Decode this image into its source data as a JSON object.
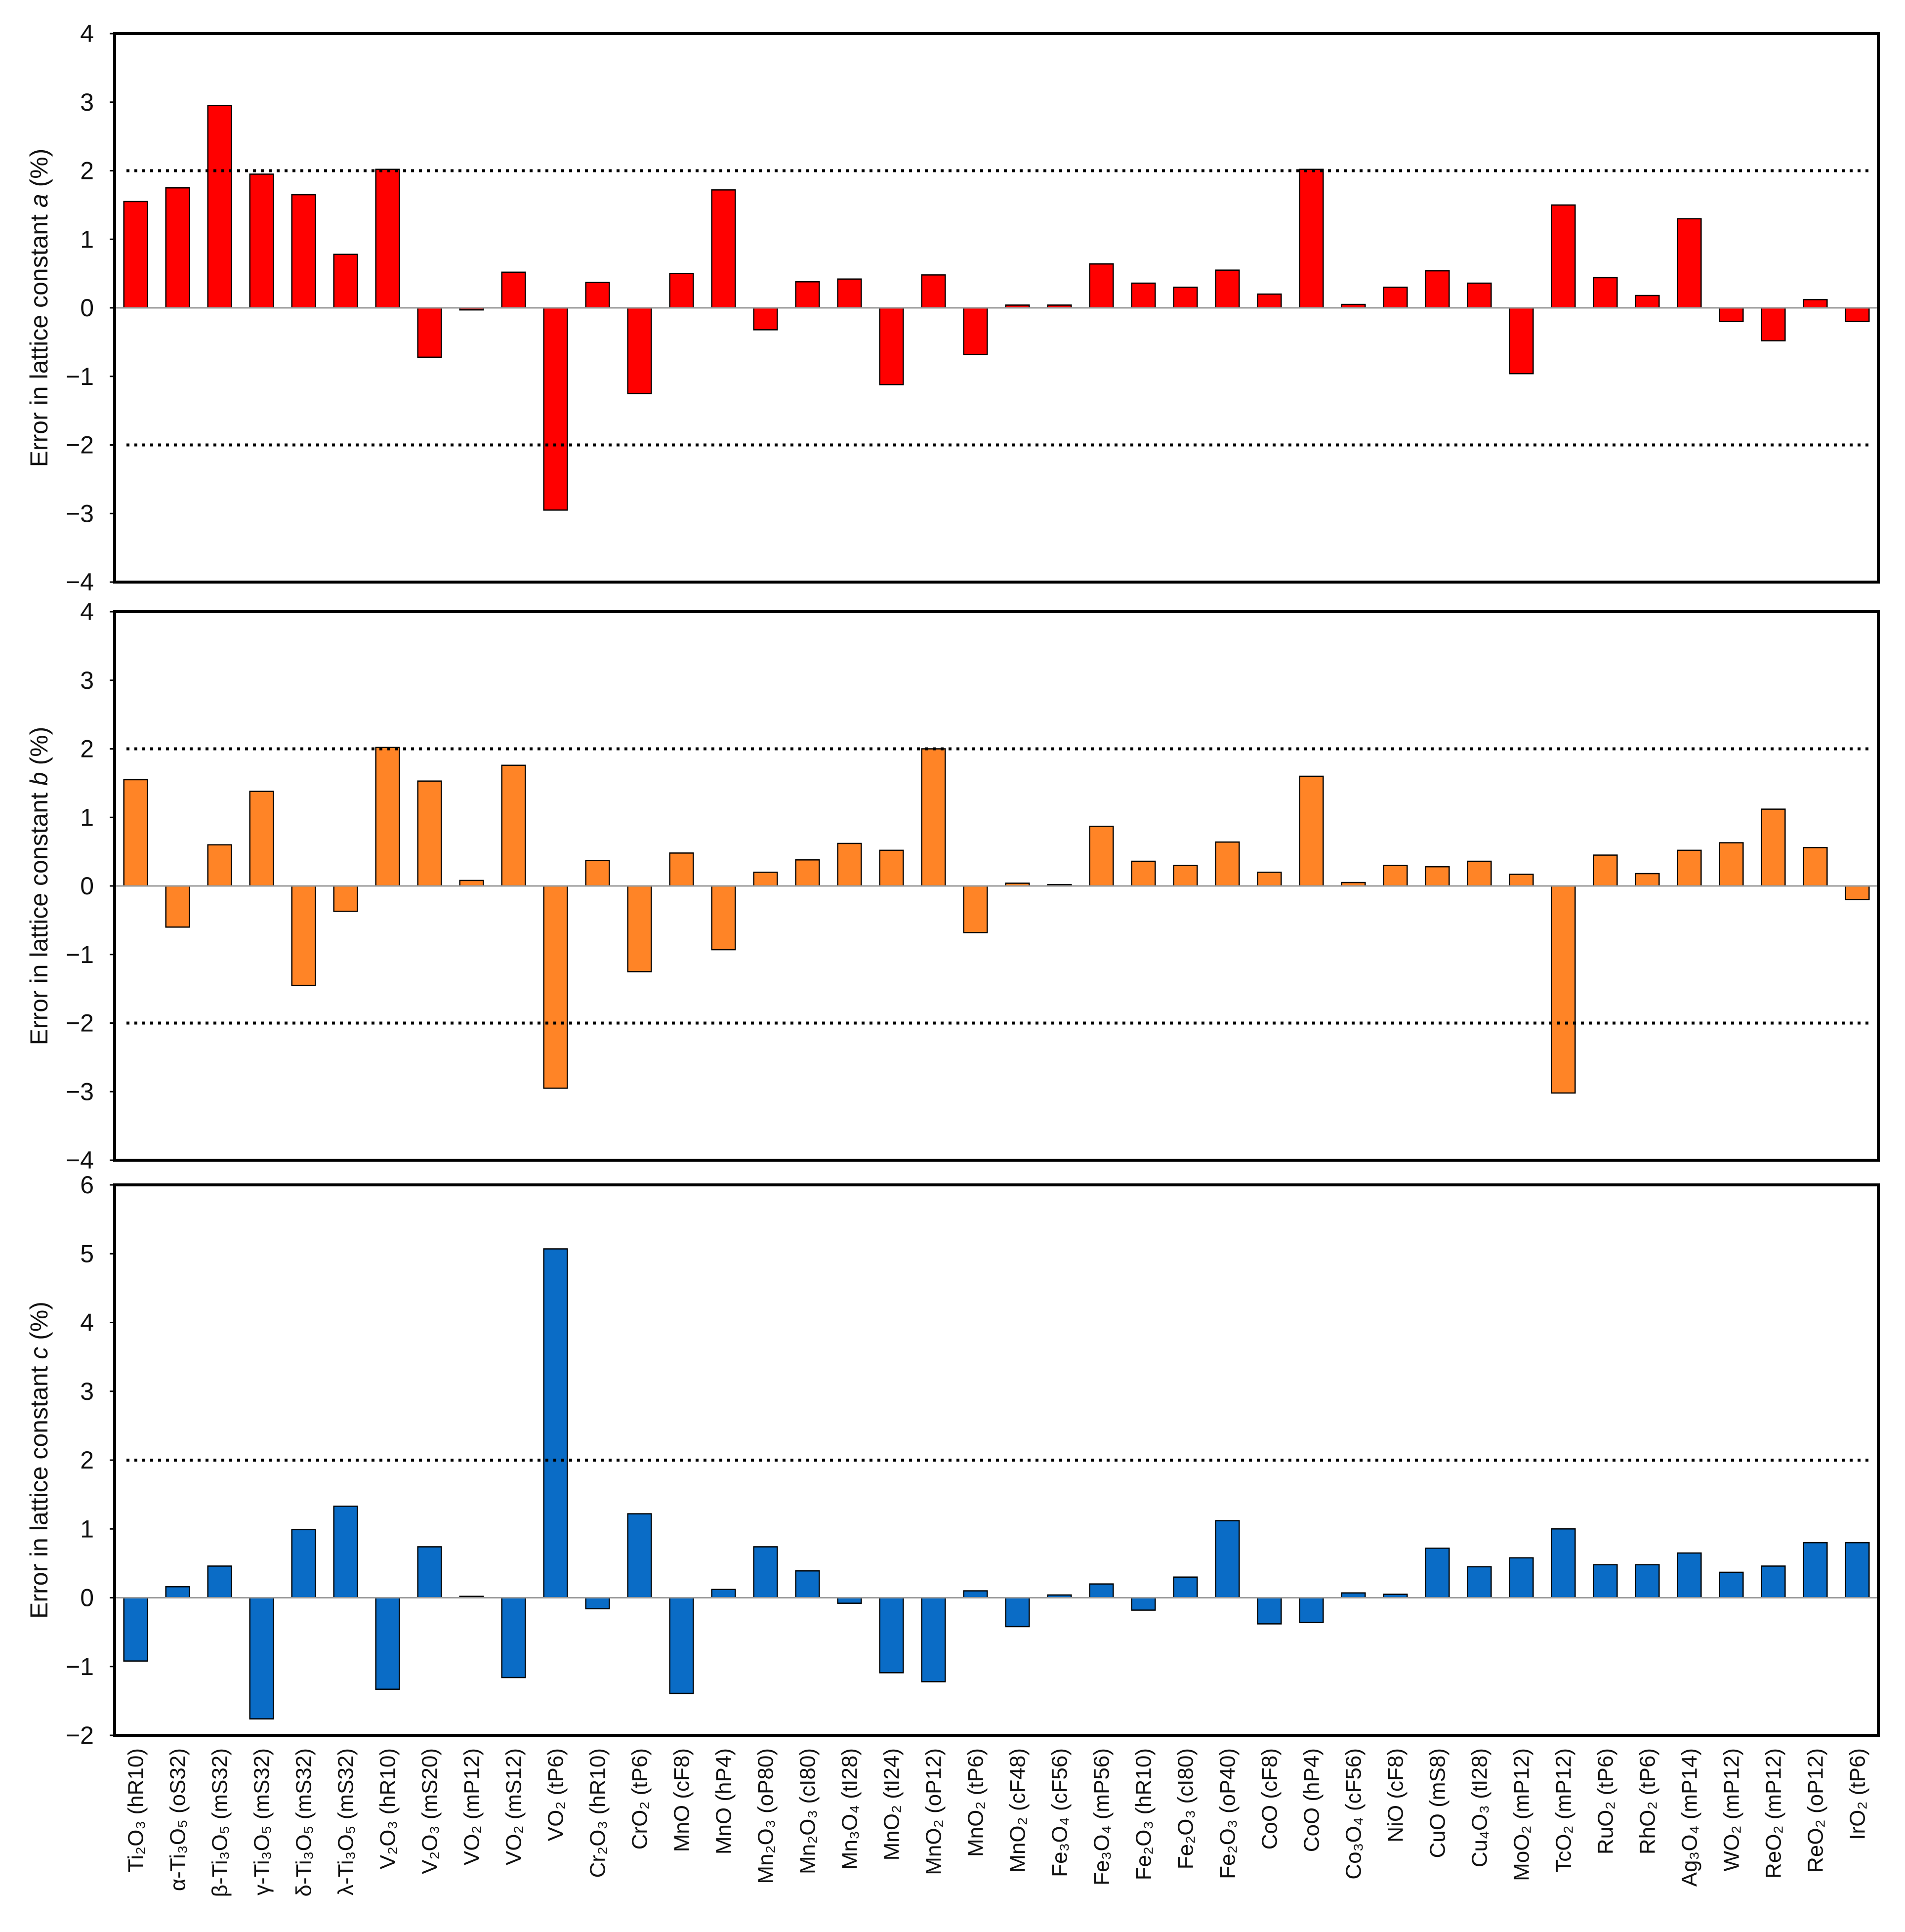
{
  "chart_data": {
    "type": "bar",
    "categories": [
      "Ti₂O₃ (hR10)",
      "α-Ti₃O₅ (oS32)",
      "β-Ti₃O₅ (mS32)",
      "γ-Ti₃O₅ (mS32)",
      "δ-Ti₃O₅ (mS32)",
      "λ-Ti₃O₅ (mS32)",
      "V₂O₃ (hR10)",
      "V₂O₃ (mS20)",
      "VO₂ (mP12)",
      "VO₂ (mS12)",
      "VO₂ (tP6)",
      "Cr₂O₃ (hR10)",
      "CrO₂ (tP6)",
      "MnO (cF8)",
      "MnO (hP4)",
      "Mn₂O₃ (oP80)",
      "Mn₂O₃ (cI80)",
      "Mn₃O₄ (tI28)",
      "MnO₂ (tI24)",
      "MnO₂ (oP12)",
      "MnO₂ (tP6)",
      "MnO₂ (cF48)",
      "Fe₃O₄ (cF56)",
      "Fe₃O₄ (mP56)",
      "Fe₂O₃ (hR10)",
      "Fe₂O₃ (cI80)",
      "Fe₂O₃ (oP40)",
      "CoO (cF8)",
      "CoO (hP4)",
      "Co₃O₄ (cF56)",
      "NiO (cF8)",
      "CuO (mS8)",
      "Cu₄O₃ (tI28)",
      "MoO₂ (mP12)",
      "TcO₂ (mP12)",
      "RuO₂ (tP6)",
      "RhO₂ (tP6)",
      "Ag₃O₄ (mP14)",
      "WO₂ (mP12)",
      "ReO₂ (mP12)",
      "ReO₂ (oP12)",
      "IrO₂ (tP6)"
    ],
    "panels": [
      {
        "name": "a",
        "ylabel": "Error in lattice constant a (%)",
        "ylim": [
          -4,
          4
        ],
        "yticks": [
          -4,
          -3,
          -2,
          -1,
          0,
          1,
          2,
          3,
          4
        ],
        "reference_lines": [
          2,
          -2
        ],
        "color": "#ff0000",
        "values": [
          1.55,
          1.75,
          2.95,
          1.95,
          1.65,
          0.78,
          2.02,
          -0.72,
          -0.03,
          0.52,
          -2.95,
          0.37,
          -1.25,
          0.5,
          1.72,
          -0.32,
          0.38,
          0.42,
          -1.12,
          0.48,
          -0.68,
          0.04,
          0.04,
          0.64,
          0.36,
          0.3,
          0.55,
          0.2,
          2.02,
          0.05,
          0.3,
          0.54,
          0.36,
          -0.96,
          1.5,
          0.44,
          0.18,
          1.3,
          -0.2,
          -0.48,
          0.12,
          -0.2
        ]
      },
      {
        "name": "b",
        "ylabel": "Error in lattice constant b (%)",
        "ylim": [
          -4,
          4
        ],
        "yticks": [
          -4,
          -3,
          -2,
          -1,
          0,
          1,
          2,
          3,
          4
        ],
        "reference_lines": [
          2,
          -2
        ],
        "color": "#ff8426",
        "values": [
          1.55,
          -0.6,
          0.6,
          1.38,
          -1.45,
          -0.37,
          2.02,
          1.53,
          0.08,
          1.76,
          -2.95,
          0.37,
          -1.25,
          0.48,
          -0.93,
          0.2,
          0.38,
          0.62,
          0.52,
          2.0,
          -0.68,
          0.04,
          0.02,
          0.87,
          0.36,
          0.3,
          0.64,
          0.2,
          1.6,
          0.05,
          0.3,
          0.28,
          0.36,
          0.17,
          -3.02,
          0.45,
          0.18,
          0.52,
          0.63,
          1.12,
          0.56,
          -0.2
        ]
      },
      {
        "name": "c",
        "ylabel": "Error in lattice constant c (%)",
        "ylim": [
          -2,
          6
        ],
        "yticks": [
          -2,
          -1,
          0,
          1,
          2,
          3,
          4,
          5,
          6
        ],
        "reference_lines": [
          2
        ],
        "color": "#0a6cc6",
        "values": [
          -0.92,
          0.16,
          0.46,
          -1.76,
          0.99,
          1.33,
          -1.33,
          0.74,
          0.02,
          -1.16,
          5.07,
          -0.16,
          1.22,
          -1.39,
          0.12,
          0.74,
          0.39,
          -0.08,
          -1.09,
          -1.22,
          0.1,
          -0.42,
          0.04,
          0.2,
          -0.18,
          0.3,
          1.12,
          -0.38,
          -0.36,
          0.07,
          0.05,
          0.72,
          0.45,
          0.58,
          1.0,
          0.48,
          0.48,
          0.65,
          0.37,
          0.46,
          0.8,
          0.8
        ]
      }
    ]
  }
}
